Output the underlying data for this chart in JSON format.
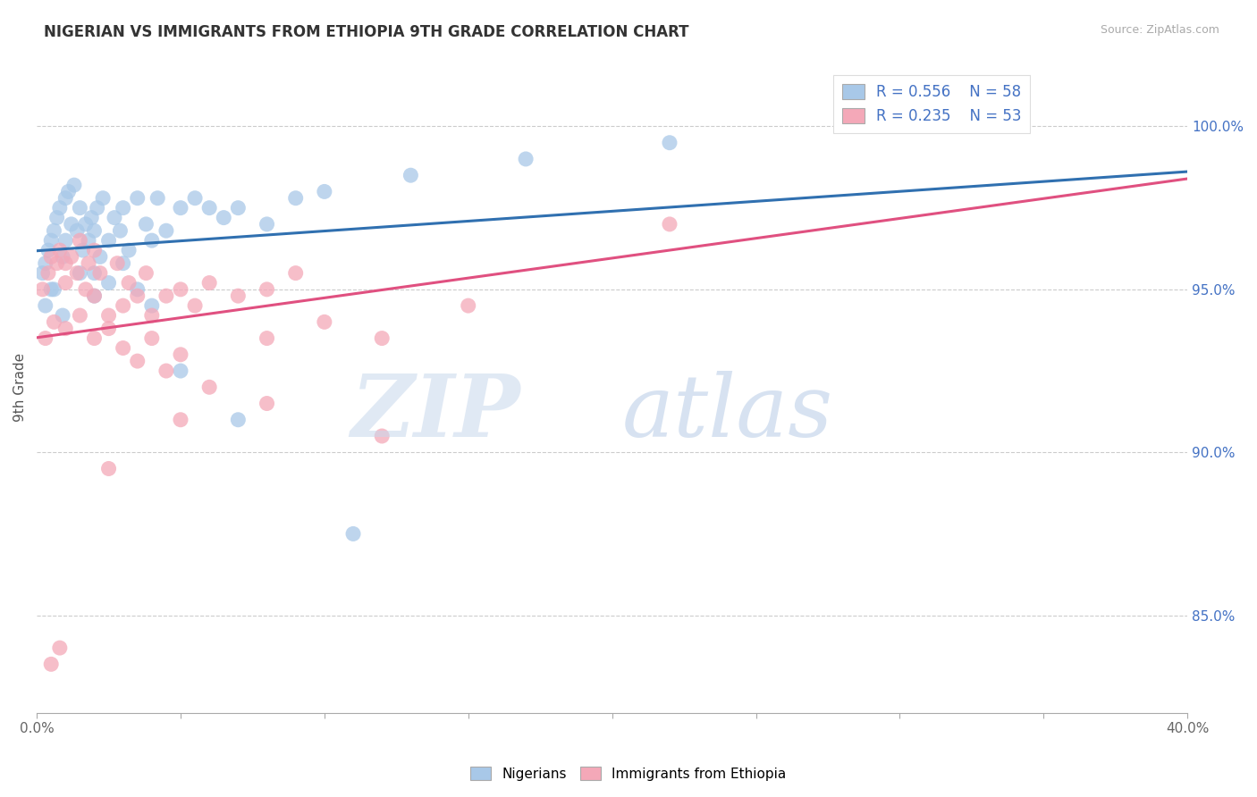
{
  "title": "NIGERIAN VS IMMIGRANTS FROM ETHIOPIA 9TH GRADE CORRELATION CHART",
  "source": "Source: ZipAtlas.com",
  "ylabel": "9th Grade",
  "legend_blue_r": "R = 0.556",
  "legend_blue_n": "N = 58",
  "legend_pink_r": "R = 0.235",
  "legend_pink_n": "N = 53",
  "legend_blue_label": "Nigerians",
  "legend_pink_label": "Immigrants from Ethiopia",
  "blue_color": "#a8c8e8",
  "pink_color": "#f4a8b8",
  "blue_line_color": "#3070b0",
  "pink_line_color": "#e05080",
  "blue_scatter_x": [
    0.2,
    0.3,
    0.4,
    0.5,
    0.5,
    0.6,
    0.7,
    0.8,
    0.9,
    1.0,
    1.0,
    1.1,
    1.2,
    1.3,
    1.4,
    1.5,
    1.6,
    1.7,
    1.8,
    1.9,
    2.0,
    2.0,
    2.1,
    2.2,
    2.3,
    2.5,
    2.7,
    2.9,
    3.0,
    3.2,
    3.5,
    3.8,
    4.0,
    4.2,
    4.5,
    5.0,
    5.5,
    6.0,
    6.5,
    7.0,
    8.0,
    9.0,
    10.0,
    13.0,
    17.0,
    22.0,
    0.3,
    0.6,
    0.9,
    1.5,
    2.0,
    2.5,
    3.0,
    3.5,
    4.0,
    5.0,
    7.0,
    11.0
  ],
  "blue_scatter_y": [
    95.5,
    95.8,
    96.2,
    96.5,
    95.0,
    96.8,
    97.2,
    97.5,
    96.0,
    97.8,
    96.5,
    98.0,
    97.0,
    98.2,
    96.8,
    97.5,
    96.2,
    97.0,
    96.5,
    97.2,
    96.8,
    95.5,
    97.5,
    96.0,
    97.8,
    96.5,
    97.2,
    96.8,
    97.5,
    96.2,
    97.8,
    97.0,
    96.5,
    97.8,
    96.8,
    97.5,
    97.8,
    97.5,
    97.2,
    97.5,
    97.0,
    97.8,
    98.0,
    98.5,
    99.0,
    99.5,
    94.5,
    95.0,
    94.2,
    95.5,
    94.8,
    95.2,
    95.8,
    95.0,
    94.5,
    92.5,
    91.0,
    87.5
  ],
  "pink_scatter_x": [
    0.2,
    0.4,
    0.5,
    0.7,
    0.8,
    1.0,
    1.0,
    1.2,
    1.4,
    1.5,
    1.7,
    1.8,
    2.0,
    2.0,
    2.2,
    2.5,
    2.8,
    3.0,
    3.2,
    3.5,
    3.8,
    4.0,
    4.5,
    5.0,
    5.5,
    6.0,
    7.0,
    8.0,
    9.0,
    0.3,
    0.6,
    1.0,
    1.5,
    2.0,
    2.5,
    3.0,
    3.5,
    4.0,
    4.5,
    5.0,
    6.0,
    8.0,
    10.0,
    12.0,
    15.0,
    2.5,
    5.0,
    8.0,
    12.0,
    22.0,
    28.0,
    0.5,
    0.8
  ],
  "pink_scatter_y": [
    95.0,
    95.5,
    96.0,
    95.8,
    96.2,
    95.2,
    95.8,
    96.0,
    95.5,
    96.5,
    95.0,
    95.8,
    96.2,
    94.8,
    95.5,
    94.2,
    95.8,
    94.5,
    95.2,
    94.8,
    95.5,
    94.2,
    94.8,
    95.0,
    94.5,
    95.2,
    94.8,
    95.0,
    95.5,
    93.5,
    94.0,
    93.8,
    94.2,
    93.5,
    93.8,
    93.2,
    92.8,
    93.5,
    92.5,
    93.0,
    92.0,
    93.5,
    94.0,
    93.5,
    94.5,
    89.5,
    91.0,
    91.5,
    90.5,
    97.0,
    100.2,
    83.5,
    84.0
  ],
  "xlim": [
    0,
    40
  ],
  "ylim": [
    82,
    102
  ],
  "y_tick_positions": [
    85,
    90,
    95,
    100
  ],
  "y_tick_labels": [
    "85.0%",
    "90.0%",
    "95.0%",
    "100.0%"
  ]
}
